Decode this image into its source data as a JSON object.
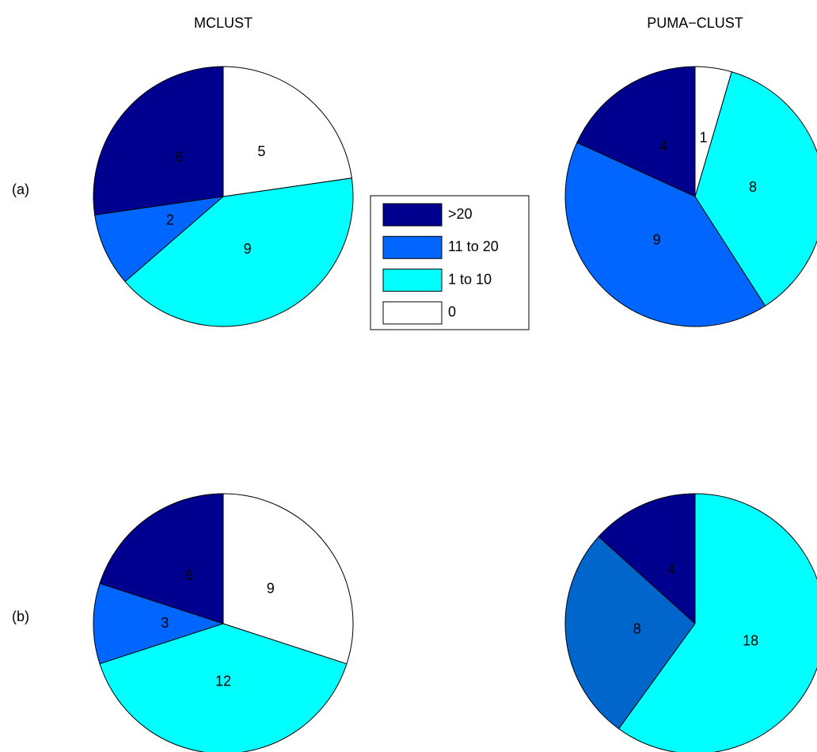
{
  "chart_data": [
    {
      "type": "pie",
      "title": "MCLUST",
      "row_label": "(a)",
      "categories": [
        ">20",
        "11 to 20",
        "1 to 10",
        "0"
      ],
      "values": [
        6,
        2,
        9,
        5
      ],
      "colors": [
        "#00008f",
        "#0066ff",
        "#00ffff",
        "#ffffff"
      ]
    },
    {
      "type": "pie",
      "title": "PUMA−CLUST",
      "categories": [
        ">20",
        "11 to 20",
        "1 to 10",
        "0"
      ],
      "values": [
        4,
        9,
        8,
        1
      ],
      "colors": [
        "#00008f",
        "#0066ff",
        "#00ffff",
        "#ffffff"
      ]
    },
    {
      "type": "pie",
      "row_label": "(b)",
      "categories": [
        ">20",
        "11 to 20",
        "1 to 10",
        "0"
      ],
      "values": [
        6,
        3,
        12,
        9
      ],
      "colors": [
        "#00008f",
        "#0066ff",
        "#00ffff",
        "#ffffff"
      ]
    },
    {
      "type": "pie",
      "categories": [
        ">20",
        "11 to 20",
        "1 to 10"
      ],
      "values": [
        4,
        8,
        18
      ],
      "colors": [
        "#00008f",
        "#0066cc",
        "#00ffff"
      ]
    }
  ]
}
